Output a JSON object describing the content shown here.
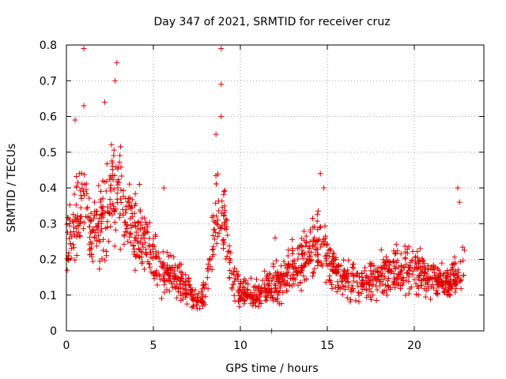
{
  "chart_data": {
    "type": "scatter",
    "title": "Day 347 of 2021, SRMTID for receiver cruz",
    "xlabel": "GPS time / hours",
    "ylabel": "SRMTID / TECUs",
    "xlim": [
      0,
      24
    ],
    "ylim": [
      0,
      0.8
    ],
    "x_ticks": [
      0,
      5,
      10,
      15,
      20
    ],
    "x_tick_labels": [
      "0",
      "5",
      "10",
      "15",
      "20"
    ],
    "y_ticks": [
      0,
      0.1,
      0.2,
      0.3,
      0.4,
      0.5,
      0.6,
      0.7,
      0.8
    ],
    "y_tick_labels": [
      "0",
      "0.1",
      "0.2",
      "0.3",
      "0.4",
      "0.5",
      "0.6",
      "0.7",
      "0.8"
    ],
    "grid": true,
    "marker": "+",
    "marker_color": "#e00000",
    "envelope": [
      [
        0.0,
        0.24
      ],
      [
        0.5,
        0.32
      ],
      [
        1.0,
        0.36
      ],
      [
        1.5,
        0.26
      ],
      [
        2.0,
        0.3
      ],
      [
        2.5,
        0.38
      ],
      [
        3.0,
        0.4
      ],
      [
        3.5,
        0.3
      ],
      [
        4.0,
        0.28
      ],
      [
        4.5,
        0.25
      ],
      [
        5.0,
        0.2
      ],
      [
        5.5,
        0.16
      ],
      [
        6.0,
        0.15
      ],
      [
        6.5,
        0.14
      ],
      [
        7.0,
        0.12
      ],
      [
        7.5,
        0.08
      ],
      [
        8.0,
        0.1
      ],
      [
        8.3,
        0.2
      ],
      [
        8.6,
        0.32
      ],
      [
        8.9,
        0.33
      ],
      [
        9.2,
        0.28
      ],
      [
        9.5,
        0.14
      ],
      [
        10.0,
        0.11
      ],
      [
        10.5,
        0.1
      ],
      [
        11.0,
        0.1
      ],
      [
        11.5,
        0.12
      ],
      [
        12.0,
        0.13
      ],
      [
        12.5,
        0.15
      ],
      [
        13.0,
        0.18
      ],
      [
        13.5,
        0.19
      ],
      [
        14.0,
        0.21
      ],
      [
        14.5,
        0.24
      ],
      [
        15.0,
        0.21
      ],
      [
        15.5,
        0.17
      ],
      [
        16.0,
        0.14
      ],
      [
        16.5,
        0.14
      ],
      [
        17.0,
        0.13
      ],
      [
        17.5,
        0.14
      ],
      [
        18.0,
        0.16
      ],
      [
        18.5,
        0.16
      ],
      [
        19.0,
        0.17
      ],
      [
        19.5,
        0.19
      ],
      [
        20.0,
        0.17
      ],
      [
        20.5,
        0.16
      ],
      [
        21.0,
        0.15
      ],
      [
        21.5,
        0.14
      ],
      [
        22.0,
        0.13
      ],
      [
        22.5,
        0.15
      ],
      [
        22.9,
        0.2
      ]
    ],
    "outliers": [
      {
        "x": 1.0,
        "y": 0.79
      },
      {
        "x": 2.9,
        "y": 0.75
      },
      {
        "x": 2.8,
        "y": 0.7
      },
      {
        "x": 8.9,
        "y": 0.79
      },
      {
        "x": 8.9,
        "y": 0.69
      },
      {
        "x": 8.9,
        "y": 0.6
      },
      {
        "x": 8.6,
        "y": 0.55
      },
      {
        "x": 1.0,
        "y": 0.63
      },
      {
        "x": 0.5,
        "y": 0.59
      },
      {
        "x": 2.2,
        "y": 0.64
      },
      {
        "x": 14.6,
        "y": 0.44
      },
      {
        "x": 14.8,
        "y": 0.4
      },
      {
        "x": 22.5,
        "y": 0.4
      },
      {
        "x": 22.6,
        "y": 0.36
      },
      {
        "x": 11.8,
        "y": 0.0
      },
      {
        "x": 5.6,
        "y": 0.4
      },
      {
        "x": 4.2,
        "y": 0.41
      },
      {
        "x": 12.0,
        "y": 0.26
      }
    ]
  }
}
